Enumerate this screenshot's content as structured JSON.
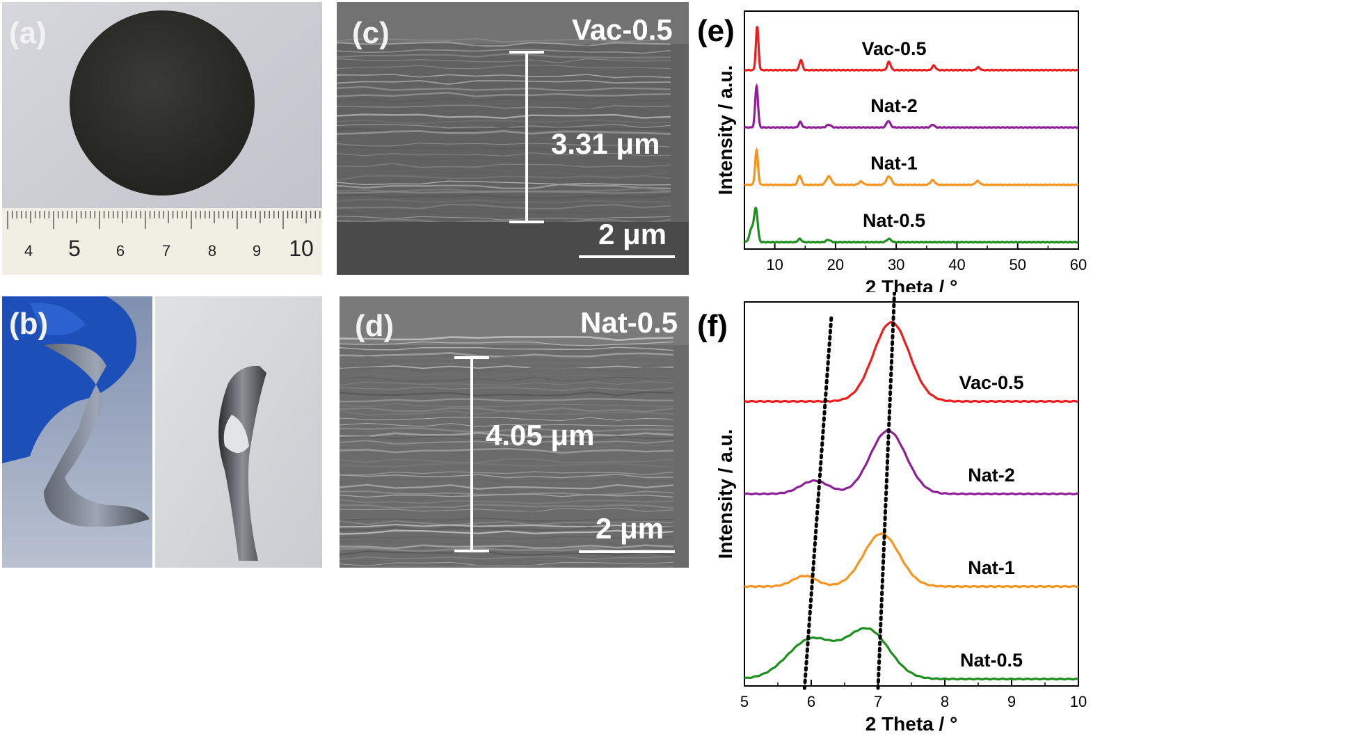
{
  "panels": {
    "a": {
      "label": "(a)",
      "ruler_numbers": [
        "4",
        "5",
        "6",
        "7",
        "8",
        "9",
        "10"
      ]
    },
    "b": {
      "label": "(b)"
    },
    "c": {
      "label": "(c)",
      "sample": "Vac-0.5",
      "thickness": "3.31 μm",
      "scale": "2 μm"
    },
    "d": {
      "label": "(d)",
      "sample": "Nat-0.5",
      "thickness": "4.05 μm",
      "scale": "2 μm"
    },
    "e": {
      "label": "(e)"
    },
    "f": {
      "label": "(f)"
    }
  },
  "chart_data": [
    {
      "panel": "e",
      "type": "line",
      "xlabel": "2 Theta / °",
      "ylabel": "Intensity / a.u.",
      "xlim": [
        5,
        60
      ],
      "xticks": [
        10,
        20,
        30,
        40,
        50,
        60
      ],
      "series": [
        {
          "name": "Vac-0.5",
          "color": "#ee1c1c",
          "offset": 3.0,
          "peaks": [
            [
              7.1,
              0.95,
              0.3
            ],
            [
              14.3,
              0.22,
              0.35
            ],
            [
              28.8,
              0.18,
              0.4
            ],
            [
              36.2,
              0.1,
              0.4
            ],
            [
              43.5,
              0.06,
              0.4
            ]
          ]
        },
        {
          "name": "Nat-2",
          "color": "#8e1f96",
          "offset": 2.0,
          "peaks": [
            [
              7.0,
              0.9,
              0.33
            ],
            [
              14.2,
              0.12,
              0.35
            ],
            [
              18.9,
              0.06,
              0.5
            ],
            [
              28.7,
              0.14,
              0.45
            ],
            [
              36.0,
              0.06,
              0.4
            ]
          ]
        },
        {
          "name": "Nat-1",
          "color": "#f7941d",
          "offset": 1.0,
          "peaks": [
            [
              7.0,
              0.75,
              0.33
            ],
            [
              14.1,
              0.2,
              0.4
            ],
            [
              18.9,
              0.18,
              0.6
            ],
            [
              24.2,
              0.07,
              0.5
            ],
            [
              28.8,
              0.18,
              0.6
            ],
            [
              36.0,
              0.1,
              0.5
            ],
            [
              43.4,
              0.08,
              0.5
            ]
          ]
        },
        {
          "name": "Nat-0.5",
          "color": "#1d8f1d",
          "offset": 0.0,
          "peaks": [
            [
              6.2,
              0.3,
              0.5
            ],
            [
              6.9,
              0.7,
              0.4
            ],
            [
              14.1,
              0.07,
              0.4
            ],
            [
              18.8,
              0.05,
              0.5
            ],
            [
              28.8,
              0.07,
              0.5
            ]
          ]
        }
      ]
    },
    {
      "panel": "f",
      "type": "line",
      "xlabel": "2 Theta / °",
      "ylabel": "Intensity / a.u.",
      "xlim": [
        5,
        10
      ],
      "xticks": [
        5,
        6,
        7,
        8,
        9,
        10
      ],
      "series": [
        {
          "name": "Vac-0.5",
          "color": "#ee1c1c",
          "offset": 3.0,
          "peaks": [
            [
              7.2,
              0.9,
              0.38
            ]
          ]
        },
        {
          "name": "Nat-2",
          "color": "#8e1f96",
          "offset": 2.0,
          "peaks": [
            [
              6.05,
              0.15,
              0.3
            ],
            [
              7.15,
              0.72,
              0.38
            ]
          ]
        },
        {
          "name": "Nat-1",
          "color": "#f7941d",
          "offset": 1.0,
          "peaks": [
            [
              5.9,
              0.12,
              0.25
            ],
            [
              7.05,
              0.6,
              0.38
            ]
          ]
        },
        {
          "name": "Nat-0.5",
          "color": "#1d8f1d",
          "offset": 0.0,
          "peaks": [
            [
              6.0,
              0.45,
              0.5
            ],
            [
              6.85,
              0.55,
              0.45
            ]
          ]
        }
      ],
      "guide_lines": [
        [
          [
            6.3,
            3.9
          ],
          [
            5.9,
            -0.1
          ]
        ],
        [
          [
            7.25,
            4.25
          ],
          [
            7.0,
            -0.1
          ]
        ]
      ]
    }
  ]
}
